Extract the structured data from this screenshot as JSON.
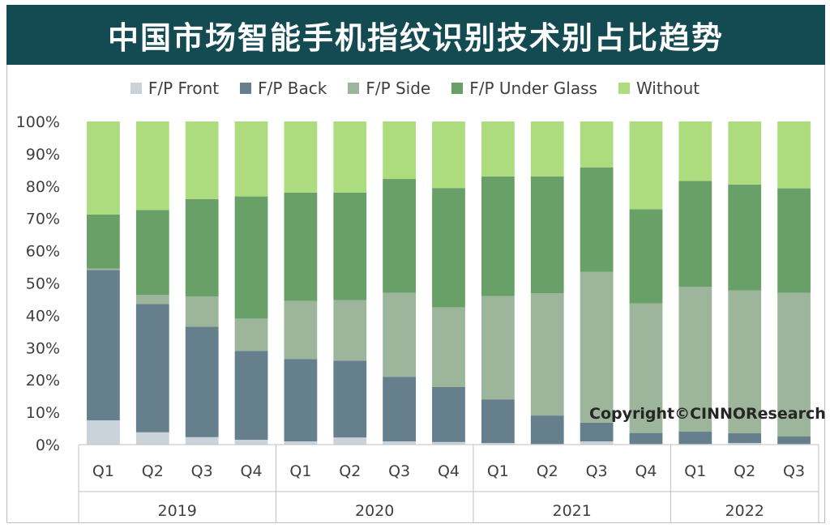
{
  "title": "中国市场智能手机指纹识别技术别占比趋势",
  "copyright": "Copyright©CINNOResearch",
  "colors": {
    "title_bg": "#144a52",
    "F/P Front": "#c9d3d9",
    "F/P Back": "#667f8c",
    "F/P Side": "#9cb59b",
    "F/P Under Glass": "#68a067",
    "Without": "#addc7f"
  },
  "chart_data": {
    "type": "bar",
    "stacked": true,
    "categories": [
      "Q1",
      "Q2",
      "Q3",
      "Q4",
      "Q1",
      "Q2",
      "Q3",
      "Q4",
      "Q1",
      "Q2",
      "Q3",
      "Q4",
      "Q1",
      "Q2",
      "Q3"
    ],
    "year_groups": [
      {
        "label": "2019",
        "count": 4
      },
      {
        "label": "2020",
        "count": 4
      },
      {
        "label": "2021",
        "count": 4
      },
      {
        "label": "2022",
        "count": 3
      }
    ],
    "ylim": [
      0,
      100
    ],
    "yticks": [
      "0%",
      "10%",
      "20%",
      "30%",
      "40%",
      "50%",
      "60%",
      "70%",
      "80%",
      "90%",
      "100%"
    ],
    "legend_position": "top",
    "grid": false,
    "series": [
      {
        "name": "F/P Front",
        "values": [
          7.5,
          3.8,
          2.3,
          1.5,
          1.0,
          2.2,
          1.0,
          0.8,
          0.5,
          0.2,
          1.0,
          0.2,
          0.2,
          0.5,
          0.2
        ]
      },
      {
        "name": "F/P Back",
        "values": [
          46.5,
          39.7,
          34.2,
          27.5,
          25.5,
          23.8,
          20.0,
          17.0,
          13.5,
          8.8,
          5.8,
          3.4,
          3.8,
          3.0,
          2.3
        ]
      },
      {
        "name": "F/P Side",
        "values": [
          0.5,
          2.8,
          9.3,
          10.0,
          18.0,
          18.7,
          26.0,
          24.7,
          32.0,
          37.8,
          46.7,
          40.1,
          44.8,
          44.2,
          44.5
        ]
      },
      {
        "name": "F/P Under Glass",
        "values": [
          16.7,
          26.3,
          30.2,
          37.8,
          33.5,
          33.3,
          35.2,
          36.9,
          37.0,
          36.2,
          32.3,
          29.1,
          32.8,
          32.8,
          32.3
        ]
      },
      {
        "name": "Without",
        "values": [
          28.8,
          27.4,
          24.0,
          23.2,
          22.0,
          22.0,
          17.8,
          20.6,
          17.0,
          17.0,
          14.2,
          27.2,
          18.4,
          19.5,
          20.7
        ]
      }
    ]
  }
}
